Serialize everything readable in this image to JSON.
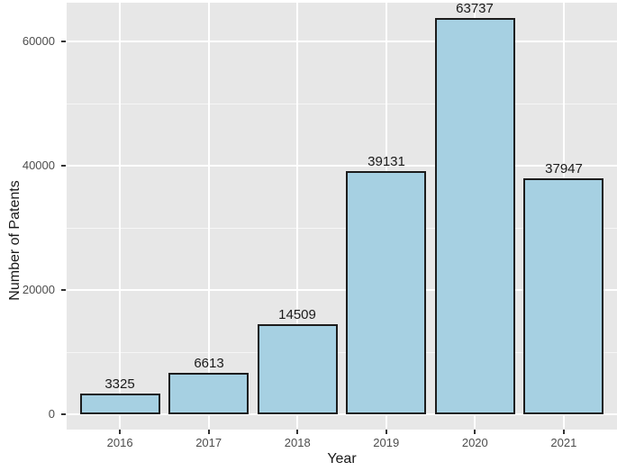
{
  "chart_data": {
    "type": "bar",
    "title": "",
    "xlabel": "Year",
    "ylabel": "Number of Patents",
    "categories": [
      "2016",
      "2017",
      "2018",
      "2019",
      "2020",
      "2021"
    ],
    "values": [
      3325,
      6613,
      14509,
      39131,
      63737,
      37947
    ],
    "bar_labels": [
      "3325",
      "6613",
      "14509",
      "39131",
      "63737",
      "37947"
    ],
    "y_ticks": [
      0,
      20000,
      40000,
      60000
    ],
    "y_tick_labels": [
      "0",
      "20000",
      "40000",
      "60000"
    ],
    "y_minor_ticks": [
      10000,
      30000,
      50000
    ],
    "ylim": [
      0,
      66200
    ],
    "grid": "on",
    "legend": "none",
    "colors": {
      "bar_fill": "#A6D0E2",
      "bar_border": "#1C1C1C",
      "panel_background": "#E7E7E7",
      "gridline": "#FFFFFF",
      "tick_label": "#4D4D4D",
      "axis_title": "#1A1A1A",
      "value_label": "#1A1A1A",
      "page_background": "#FFFFFF"
    }
  }
}
